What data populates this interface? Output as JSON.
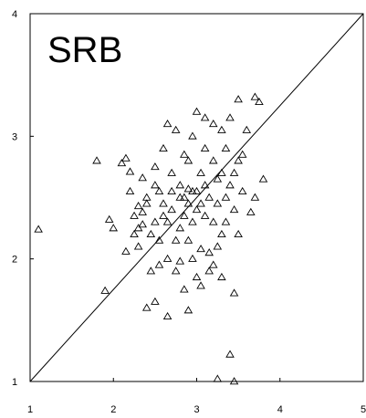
{
  "chart_data": {
    "type": "scatter",
    "title": "SRB",
    "xlabel": "",
    "ylabel": "",
    "xlim": [
      1,
      5
    ],
    "ylim": [
      1,
      4
    ],
    "xticks": [
      1,
      2,
      3,
      4,
      5
    ],
    "yticks": [
      1,
      2,
      3,
      4
    ],
    "marker": "open-triangle",
    "identity_line": [
      [
        1,
        1
      ],
      [
        5,
        4
      ]
    ],
    "grid": false,
    "legend": "none",
    "colors": {
      "marker": "#000000",
      "line": "#000000",
      "frame": "#000000",
      "background": "#ffffff"
    },
    "points": [
      [
        1.1,
        2.24
      ],
      [
        1.8,
        2.8
      ],
      [
        1.9,
        1.74
      ],
      [
        1.95,
        2.32
      ],
      [
        2.0,
        2.25
      ],
      [
        2.1,
        2.78
      ],
      [
        2.15,
        2.82
      ],
      [
        2.15,
        2.06
      ],
      [
        2.2,
        2.71
      ],
      [
        2.2,
        2.55
      ],
      [
        2.25,
        2.35
      ],
      [
        2.25,
        2.2
      ],
      [
        2.3,
        2.25
      ],
      [
        2.3,
        2.43
      ],
      [
        2.3,
        2.1
      ],
      [
        2.35,
        2.66
      ],
      [
        2.35,
        2.38
      ],
      [
        2.35,
        2.28
      ],
      [
        2.4,
        2.5
      ],
      [
        2.4,
        1.6
      ],
      [
        2.4,
        2.45
      ],
      [
        2.45,
        2.2
      ],
      [
        2.45,
        1.9
      ],
      [
        2.5,
        2.6
      ],
      [
        2.5,
        2.3
      ],
      [
        2.5,
        2.75
      ],
      [
        2.5,
        1.65
      ],
      [
        2.55,
        2.15
      ],
      [
        2.55,
        2.55
      ],
      [
        2.55,
        1.95
      ],
      [
        2.6,
        2.45
      ],
      [
        2.6,
        2.35
      ],
      [
        2.6,
        2.9
      ],
      [
        2.65,
        3.1
      ],
      [
        2.65,
        2.3
      ],
      [
        2.65,
        2.0
      ],
      [
        2.65,
        1.53
      ],
      [
        2.7,
        2.7
      ],
      [
        2.7,
        2.55
      ],
      [
        2.7,
        2.4
      ],
      [
        2.75,
        3.05
      ],
      [
        2.75,
        2.15
      ],
      [
        2.75,
        1.9
      ],
      [
        2.8,
        2.6
      ],
      [
        2.8,
        2.25
      ],
      [
        2.8,
        2.5
      ],
      [
        2.8,
        1.98
      ],
      [
        2.85,
        2.85
      ],
      [
        2.85,
        2.5
      ],
      [
        2.85,
        2.35
      ],
      [
        2.85,
        1.75
      ],
      [
        2.9,
        2.8
      ],
      [
        2.9,
        2.57
      ],
      [
        2.9,
        2.45
      ],
      [
        2.9,
        2.15
      ],
      [
        2.9,
        1.58
      ],
      [
        2.95,
        3.0
      ],
      [
        2.95,
        2.55
      ],
      [
        2.95,
        2.3
      ],
      [
        2.95,
        2.0
      ],
      [
        3.0,
        3.2
      ],
      [
        3.0,
        2.55
      ],
      [
        3.0,
        2.4
      ],
      [
        3.0,
        1.85
      ],
      [
        3.05,
        2.7
      ],
      [
        3.05,
        2.45
      ],
      [
        3.05,
        2.08
      ],
      [
        3.05,
        1.78
      ],
      [
        3.1,
        3.15
      ],
      [
        3.1,
        2.9
      ],
      [
        3.1,
        2.6
      ],
      [
        3.1,
        2.35
      ],
      [
        3.15,
        2.5
      ],
      [
        3.15,
        2.05
      ],
      [
        3.15,
        1.9
      ],
      [
        3.2,
        3.1
      ],
      [
        3.2,
        2.8
      ],
      [
        3.2,
        2.3
      ],
      [
        3.2,
        1.95
      ],
      [
        3.25,
        2.65
      ],
      [
        3.25,
        2.45
      ],
      [
        3.25,
        2.1
      ],
      [
        3.25,
        1.02
      ],
      [
        3.3,
        3.05
      ],
      [
        3.3,
        2.7
      ],
      [
        3.3,
        2.2
      ],
      [
        3.3,
        1.85
      ],
      [
        3.35,
        2.9
      ],
      [
        3.35,
        2.5
      ],
      [
        3.35,
        2.3
      ],
      [
        3.4,
        3.15
      ],
      [
        3.4,
        2.6
      ],
      [
        3.4,
        1.22
      ],
      [
        3.45,
        2.7
      ],
      [
        3.45,
        2.4
      ],
      [
        3.45,
        1.72
      ],
      [
        3.45,
        1.0
      ],
      [
        3.5,
        2.8
      ],
      [
        3.5,
        2.2
      ],
      [
        3.5,
        3.3
      ],
      [
        3.55,
        2.55
      ],
      [
        3.55,
        2.85
      ],
      [
        3.6,
        3.05
      ],
      [
        3.65,
        2.38
      ],
      [
        3.7,
        3.32
      ],
      [
        3.7,
        2.5
      ],
      [
        3.75,
        3.28
      ],
      [
        3.8,
        2.65
      ]
    ]
  }
}
